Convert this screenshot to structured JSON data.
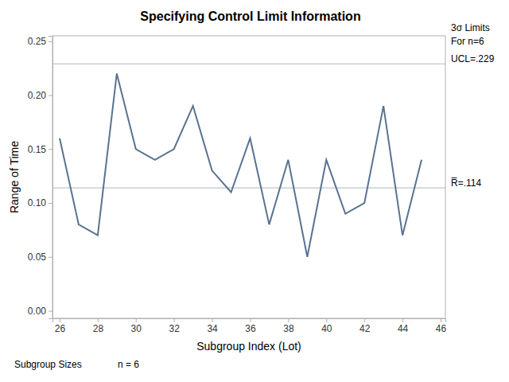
{
  "chart_data": {
    "type": "line",
    "title": "Specifying Control Limit Information",
    "x_label": "Subgroup Index (Lot)",
    "y_label": "Range of Time",
    "x": [
      26,
      27,
      28,
      29,
      30,
      31,
      32,
      33,
      34,
      35,
      36,
      37,
      38,
      39,
      40,
      41,
      42,
      43,
      44,
      45
    ],
    "values": [
      0.16,
      0.08,
      0.07,
      0.22,
      0.15,
      0.14,
      0.15,
      0.19,
      0.13,
      0.11,
      0.16,
      0.08,
      0.14,
      0.05,
      0.14,
      0.09,
      0.1,
      0.19,
      0.07,
      0.14
    ],
    "color": "#5a7391",
    "xlim": [
      25.625,
      46.25
    ],
    "xticks": [
      26,
      28,
      30,
      32,
      34,
      36,
      38,
      40,
      42,
      44,
      46
    ],
    "ylim": [
      -0.007,
      0.255
    ],
    "yticks": [
      {
        "value": 0,
        "label": "0.00"
      },
      {
        "value": 0.05,
        "label": "0.05"
      },
      {
        "value": 0.1,
        "label": "0.10"
      },
      {
        "value": 0.15,
        "label": "0.15"
      },
      {
        "value": 0.2,
        "label": "0.20"
      },
      {
        "value": 0.25,
        "label": "0.25"
      }
    ],
    "grid": false,
    "control_limits": [
      {
        "value": 0.229,
        "label": "UCL=.229"
      },
      {
        "value": 0.114,
        "label": "R̅=.114"
      }
    ],
    "limits_note": [
      "3σ Limits",
      "For n=6"
    ],
    "subgroup_sizes_label": "Subgroup Sizes",
    "subgroup_sizes": "n = 6"
  }
}
